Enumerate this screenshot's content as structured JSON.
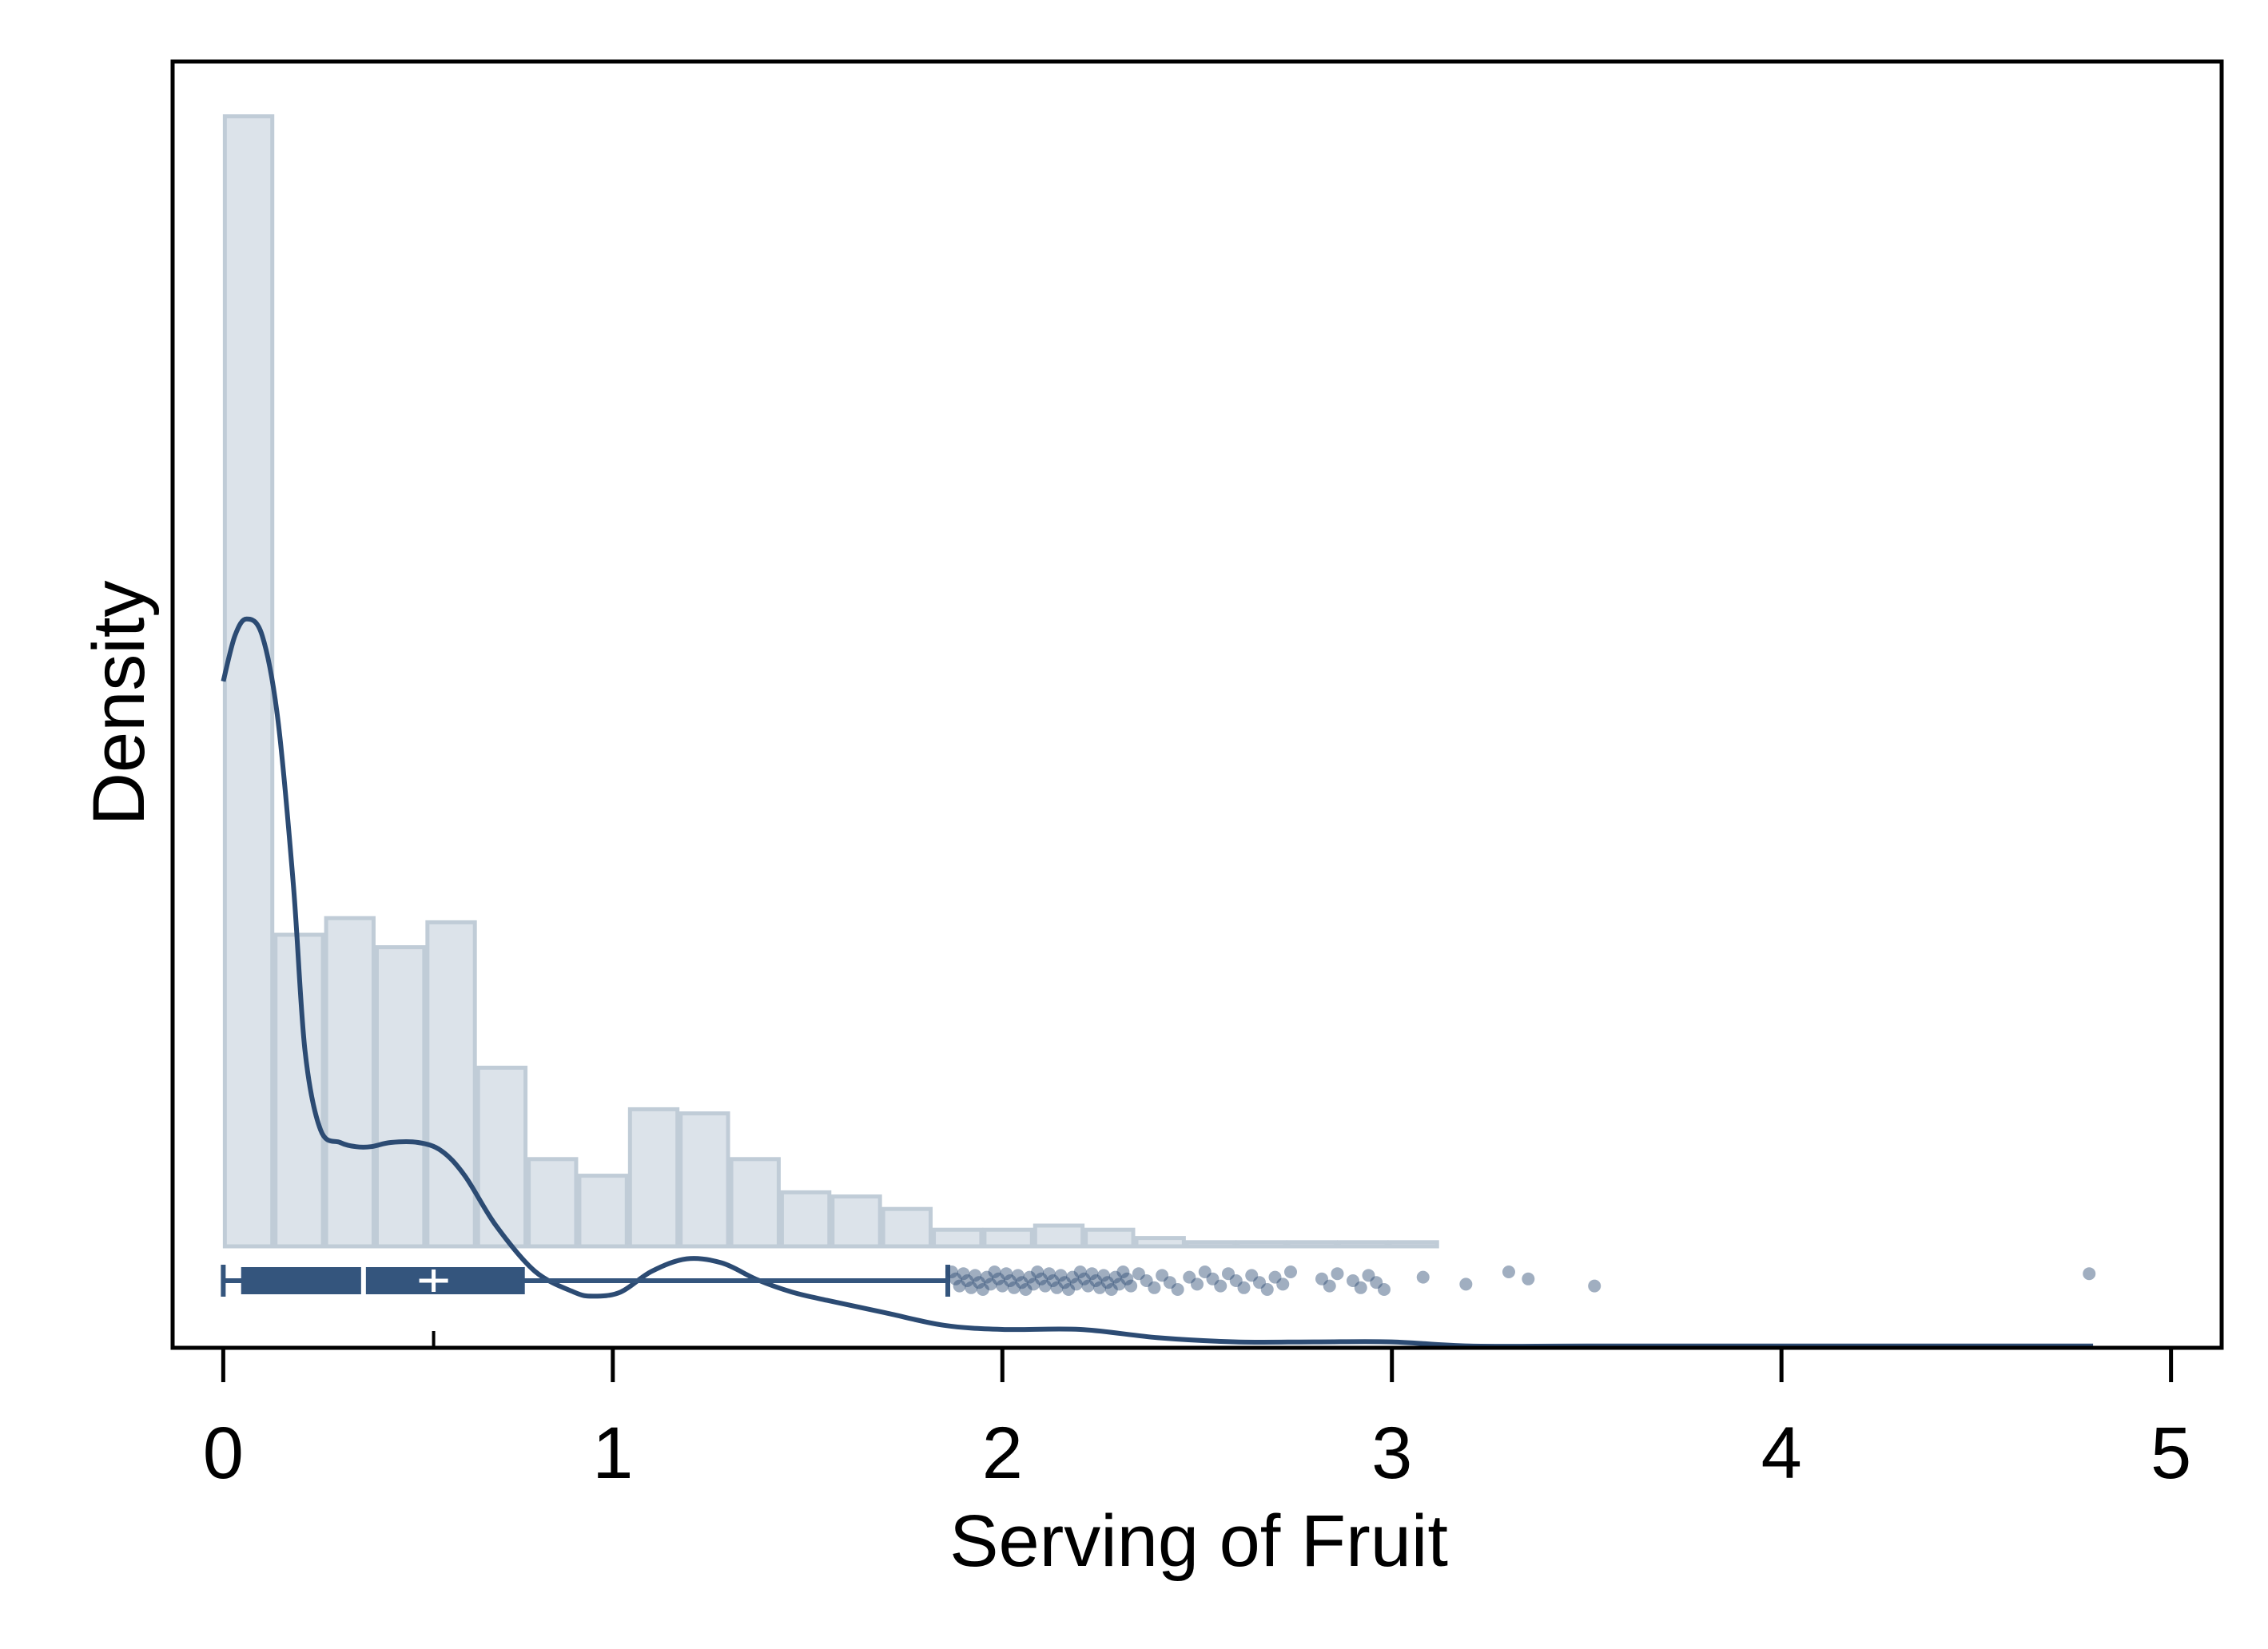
{
  "chart_data": {
    "type": "histogram",
    "xlabel": "Serving of Fruit",
    "ylabel": "Density",
    "xlim": [
      -0.13,
      5.13
    ],
    "x_ticks": [
      0,
      1,
      2,
      3,
      4,
      5
    ],
    "grid": false,
    "colors": {
      "bar_fill": "#dce3ea",
      "bar_stroke": "#c0ccd7",
      "line": "#2c4b73",
      "box": "#34557d",
      "points": "#2c4b73"
    },
    "histogram": {
      "bin_edges": [
        0,
        0.13,
        0.26,
        0.39,
        0.52,
        0.65,
        0.78,
        0.91,
        1.04,
        1.17,
        1.3,
        1.43,
        1.56,
        1.69,
        1.82,
        1.95,
        2.08,
        2.21,
        2.34,
        2.47,
        2.6,
        2.73,
        2.86,
        2.99,
        3.12,
        3.25,
        3.38,
        3.51,
        3.64,
        3.77,
        3.9,
        4.03,
        4.16,
        4.29,
        4.42,
        4.55,
        4.68,
        4.81
      ],
      "densities": [
        2.72,
        0.75,
        0.79,
        0.72,
        0.78,
        0.43,
        0.21,
        0.17,
        0.33,
        0.32,
        0.21,
        0.13,
        0.12,
        0.09,
        0.04,
        0.04,
        0.05,
        0.04,
        0.02,
        0.01,
        0.01,
        0.01,
        0.01,
        0.01,
        0.0,
        0.0,
        0.0,
        0.0,
        0.0,
        0.0,
        0.0,
        0.0,
        0.0,
        0.0,
        0.0,
        0.0,
        0.0
      ]
    },
    "kde": {
      "x": [
        0.0,
        0.03,
        0.06,
        0.1,
        0.14,
        0.18,
        0.21,
        0.25,
        0.3,
        0.34,
        0.38,
        0.43,
        0.5,
        0.56,
        0.62,
        0.7,
        0.8,
        0.9,
        0.95,
        1.02,
        1.1,
        1.19,
        1.28,
        1.37,
        1.46,
        1.55,
        1.7,
        1.85,
        2.0,
        2.2,
        2.4,
        2.6,
        2.8,
        3.0,
        3.2,
        3.5,
        4.0,
        4.5,
        4.8
      ],
      "y": [
        1.36,
        1.47,
        1.51,
        1.47,
        1.27,
        0.87,
        0.47,
        0.28,
        0.25,
        0.24,
        0.24,
        0.25,
        0.25,
        0.23,
        0.17,
        0.05,
        -0.06,
        -0.11,
        -0.12,
        -0.11,
        -0.06,
        -0.03,
        -0.04,
        -0.08,
        -0.11,
        -0.13,
        -0.16,
        -0.19,
        -0.2,
        -0.2,
        -0.22,
        -0.23,
        -0.23,
        -0.23,
        -0.24,
        -0.24,
        -0.24,
        -0.24,
        -0.24
      ]
    },
    "boxplot": {
      "whisker_low": 0.0,
      "q1": 0.05,
      "median": 0.36,
      "mean": 0.54,
      "q3": 0.77,
      "whisker_high": 1.86
    },
    "outliers": [
      1.87,
      1.88,
      1.89,
      1.9,
      1.91,
      1.92,
      1.93,
      1.94,
      1.95,
      1.96,
      1.97,
      1.98,
      1.99,
      2.0,
      2.01,
      2.02,
      2.03,
      2.04,
      2.05,
      2.06,
      2.07,
      2.08,
      2.09,
      2.1,
      2.11,
      2.12,
      2.13,
      2.14,
      2.15,
      2.16,
      2.17,
      2.18,
      2.19,
      2.2,
      2.21,
      2.22,
      2.23,
      2.24,
      2.25,
      2.26,
      2.27,
      2.28,
      2.29,
      2.3,
      2.31,
      2.32,
      2.33,
      2.35,
      2.37,
      2.39,
      2.41,
      2.43,
      2.45,
      2.48,
      2.5,
      2.52,
      2.54,
      2.56,
      2.58,
      2.6,
      2.62,
      2.64,
      2.66,
      2.68,
      2.7,
      2.72,
      2.74,
      2.82,
      2.84,
      2.86,
      2.9,
      2.92,
      2.94,
      2.96,
      2.98,
      3.08,
      3.19,
      3.3,
      3.35,
      3.52,
      4.79
    ]
  }
}
